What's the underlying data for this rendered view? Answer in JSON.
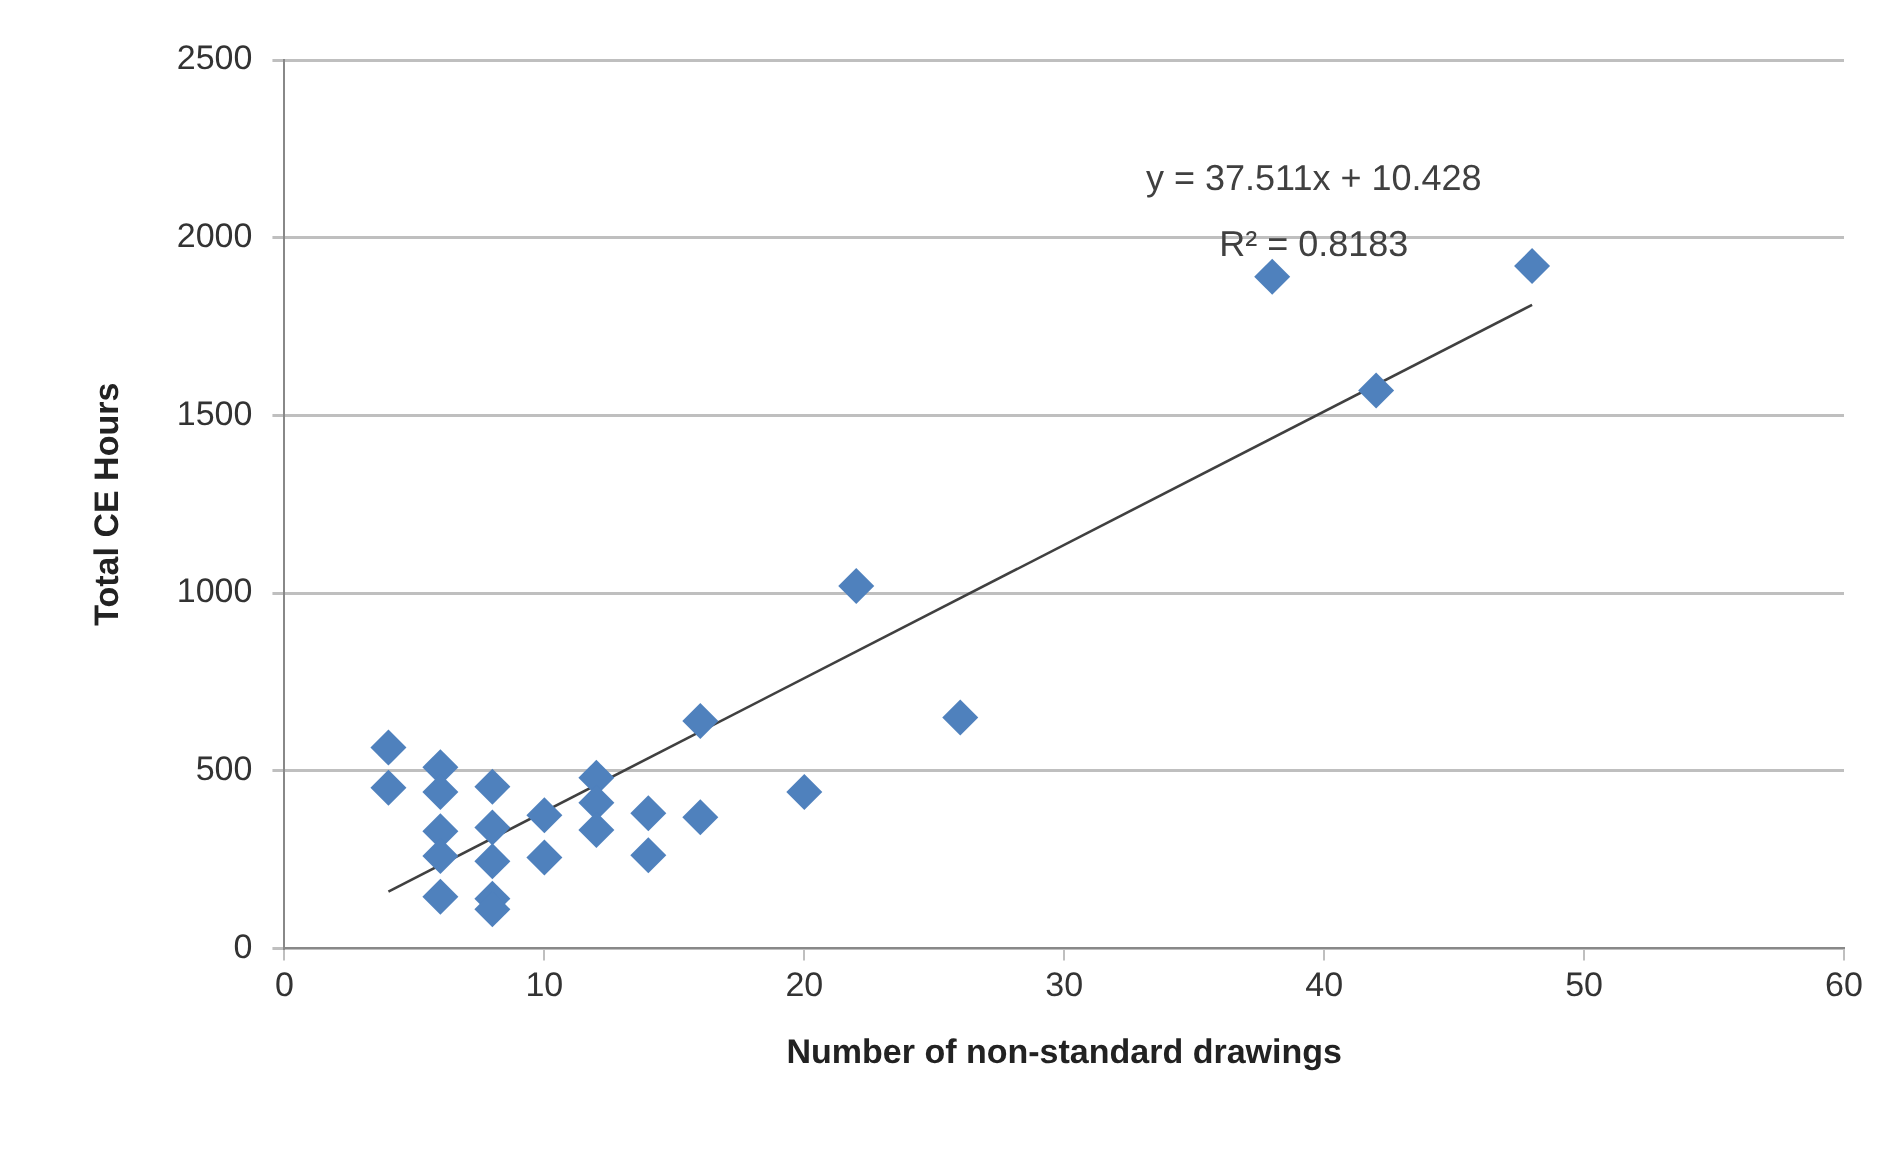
{
  "chart_data": {
    "type": "scatter",
    "xlabel": "Number of non-standard drawings",
    "ylabel": "Total CE Hours",
    "xlim": [
      0,
      60
    ],
    "xticks": [
      0,
      10,
      20,
      30,
      40,
      50,
      60
    ],
    "ylim": [
      0,
      2500
    ],
    "yticks": [
      0,
      500,
      1000,
      1500,
      2000,
      2500
    ],
    "grid": "y",
    "legend": false,
    "marker": "diamond",
    "annotations": [
      "y = 37.511x + 10.428",
      "R² = 0.8183"
    ],
    "series": [
      {
        "type": "scatter",
        "color": "#4f81bd",
        "x": [
          4,
          4,
          6,
          6,
          6,
          6,
          6,
          8,
          8,
          8,
          8,
          8,
          10,
          10,
          12,
          12,
          12,
          14,
          14,
          16,
          16,
          20,
          22,
          26,
          38,
          42,
          48
        ],
        "values": [
          565,
          452,
          510,
          440,
          330,
          260,
          145,
          455,
          340,
          245,
          140,
          110,
          375,
          256,
          480,
          410,
          333,
          380,
          262,
          640,
          369,
          440,
          1020,
          650,
          1890,
          1570,
          1920
        ]
      },
      {
        "type": "line",
        "color": "#404040",
        "marker": "none",
        "x": [
          4,
          48
        ],
        "values": [
          160,
          1811
        ]
      }
    ]
  }
}
